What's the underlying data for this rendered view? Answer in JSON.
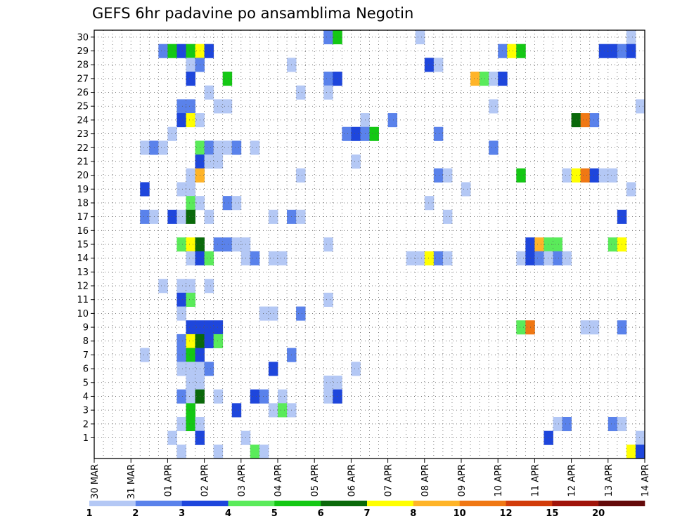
{
  "chart_data": {
    "type": "heatmap",
    "title": "GEFS 6hr padavine po ansamblima Negotin",
    "y_labels": [
      "1",
      "2",
      "3",
      "4",
      "5",
      "6",
      "7",
      "8",
      "9",
      "10",
      "11",
      "12",
      "13",
      "14",
      "15",
      "16",
      "17",
      "18",
      "19",
      "20",
      "21",
      "22",
      "23",
      "24",
      "25",
      "26",
      "27",
      "28",
      "29",
      "30"
    ],
    "x_labels": [
      "30 MAR",
      "31 MAR",
      "01 APR",
      "02 APR",
      "03 APR",
      "04 APR",
      "05 APR",
      "06 APR",
      "07 APR",
      "08 APR",
      "09 APR",
      "10 APR",
      "11 APR",
      "12 APR",
      "13 APR",
      "14 APR"
    ],
    "steps_per_day": 4,
    "x_steps": 60,
    "grid": "dotted",
    "colorbar": {
      "levels": [
        1,
        2,
        3,
        4,
        5,
        6,
        7,
        8,
        10,
        12,
        15,
        20
      ],
      "colors": [
        "#b4c8f5",
        "#5a82eb",
        "#1e46dc",
        "#5aeb5a",
        "#14c814",
        "#0a690a",
        "#ffff00",
        "#ffb428",
        "#f07814",
        "#d23c0a",
        "#a0140a",
        "#640a0a"
      ]
    },
    "cells": [
      {
        "m": 30,
        "s": [
          [
            25,
            25,
            1
          ],
          [
            26,
            26,
            4
          ],
          [
            35,
            35,
            0
          ],
          [
            58,
            58,
            0
          ]
        ]
      },
      {
        "m": 29,
        "s": [
          [
            7,
            7,
            1
          ],
          [
            8,
            8,
            4
          ],
          [
            9,
            9,
            2
          ],
          [
            10,
            10,
            4
          ],
          [
            11,
            11,
            6
          ],
          [
            12,
            12,
            2
          ],
          [
            44,
            44,
            1
          ],
          [
            45,
            45,
            6
          ],
          [
            46,
            46,
            4
          ],
          [
            55,
            56,
            2
          ],
          [
            57,
            57,
            1
          ],
          [
            58,
            58,
            2
          ]
        ]
      },
      {
        "m": 28,
        "s": [
          [
            10,
            10,
            0
          ],
          [
            11,
            11,
            1
          ],
          [
            21,
            21,
            0
          ],
          [
            36,
            36,
            2
          ],
          [
            37,
            37,
            0
          ]
        ]
      },
      {
        "m": 27,
        "s": [
          [
            10,
            10,
            2
          ],
          [
            14,
            14,
            4
          ],
          [
            25,
            25,
            1
          ],
          [
            26,
            26,
            2
          ],
          [
            41,
            41,
            7
          ],
          [
            42,
            42,
            3
          ],
          [
            43,
            43,
            0
          ],
          [
            44,
            44,
            2
          ]
        ]
      },
      {
        "m": 26,
        "s": [
          [
            12,
            12,
            0
          ],
          [
            22,
            22,
            0
          ],
          [
            25,
            25,
            0
          ]
        ]
      },
      {
        "m": 25,
        "s": [
          [
            9,
            10,
            1
          ],
          [
            13,
            14,
            0
          ],
          [
            43,
            43,
            0
          ],
          [
            59,
            59,
            0
          ]
        ]
      },
      {
        "m": 24,
        "s": [
          [
            9,
            9,
            2
          ],
          [
            10,
            10,
            6
          ],
          [
            11,
            11,
            0
          ],
          [
            29,
            29,
            0
          ],
          [
            32,
            32,
            1
          ],
          [
            52,
            52,
            5
          ],
          [
            53,
            53,
            8
          ],
          [
            54,
            54,
            1
          ]
        ]
      },
      {
        "m": 23,
        "s": [
          [
            8,
            8,
            0
          ],
          [
            27,
            27,
            1
          ],
          [
            28,
            28,
            2
          ],
          [
            29,
            29,
            1
          ],
          [
            30,
            30,
            4
          ],
          [
            37,
            37,
            1
          ]
        ]
      },
      {
        "m": 22,
        "s": [
          [
            5,
            5,
            0
          ],
          [
            6,
            6,
            1
          ],
          [
            7,
            7,
            0
          ],
          [
            11,
            11,
            3
          ],
          [
            12,
            12,
            1
          ],
          [
            13,
            14,
            0
          ],
          [
            15,
            15,
            1
          ],
          [
            17,
            17,
            0
          ],
          [
            43,
            43,
            1
          ]
        ]
      },
      {
        "m": 21,
        "s": [
          [
            11,
            11,
            2
          ],
          [
            12,
            13,
            0
          ],
          [
            28,
            28,
            0
          ]
        ]
      },
      {
        "m": 20,
        "s": [
          [
            10,
            10,
            0
          ],
          [
            11,
            11,
            7
          ],
          [
            22,
            22,
            0
          ],
          [
            37,
            37,
            1
          ],
          [
            38,
            38,
            0
          ],
          [
            46,
            46,
            4
          ],
          [
            51,
            51,
            0
          ],
          [
            52,
            52,
            6
          ],
          [
            53,
            53,
            8
          ],
          [
            54,
            54,
            2
          ],
          [
            55,
            56,
            0
          ]
        ]
      },
      {
        "m": 19,
        "s": [
          [
            5,
            5,
            2
          ],
          [
            9,
            10,
            0
          ],
          [
            40,
            40,
            0
          ],
          [
            58,
            58,
            0
          ]
        ]
      },
      {
        "m": 18,
        "s": [
          [
            10,
            10,
            3
          ],
          [
            11,
            11,
            0
          ],
          [
            14,
            14,
            1
          ],
          [
            15,
            15,
            0
          ],
          [
            36,
            36,
            0
          ]
        ]
      },
      {
        "m": 17,
        "s": [
          [
            5,
            5,
            1
          ],
          [
            6,
            6,
            0
          ],
          [
            8,
            8,
            2
          ],
          [
            9,
            9,
            0
          ],
          [
            10,
            10,
            5
          ],
          [
            12,
            12,
            0
          ],
          [
            19,
            19,
            0
          ],
          [
            21,
            21,
            1
          ],
          [
            22,
            22,
            0
          ],
          [
            38,
            38,
            0
          ],
          [
            57,
            57,
            2
          ]
        ]
      },
      {
        "m": 15,
        "s": [
          [
            9,
            9,
            3
          ],
          [
            10,
            10,
            6
          ],
          [
            11,
            11,
            5
          ],
          [
            13,
            14,
            1
          ],
          [
            15,
            16,
            0
          ],
          [
            25,
            25,
            0
          ],
          [
            47,
            47,
            2
          ],
          [
            48,
            48,
            7
          ],
          [
            49,
            50,
            3
          ],
          [
            56,
            56,
            3
          ],
          [
            57,
            57,
            6
          ]
        ]
      },
      {
        "m": 14,
        "s": [
          [
            10,
            10,
            0
          ],
          [
            11,
            11,
            2
          ],
          [
            12,
            12,
            3
          ],
          [
            16,
            16,
            0
          ],
          [
            17,
            17,
            1
          ],
          [
            19,
            20,
            0
          ],
          [
            34,
            35,
            0
          ],
          [
            36,
            36,
            6
          ],
          [
            37,
            37,
            1
          ],
          [
            38,
            38,
            0
          ],
          [
            46,
            46,
            0
          ],
          [
            47,
            47,
            2
          ],
          [
            48,
            48,
            1
          ],
          [
            49,
            49,
            0
          ],
          [
            50,
            50,
            1
          ],
          [
            51,
            51,
            0
          ]
        ]
      },
      {
        "m": 12,
        "s": [
          [
            7,
            7,
            0
          ],
          [
            9,
            10,
            0
          ],
          [
            12,
            12,
            0
          ]
        ]
      },
      {
        "m": 11,
        "s": [
          [
            9,
            9,
            2
          ],
          [
            10,
            10,
            3
          ],
          [
            25,
            25,
            0
          ]
        ]
      },
      {
        "m": 10,
        "s": [
          [
            9,
            9,
            0
          ],
          [
            18,
            19,
            0
          ],
          [
            22,
            22,
            1
          ]
        ]
      },
      {
        "m": 9,
        "s": [
          [
            10,
            10,
            2
          ],
          [
            11,
            13,
            2
          ],
          [
            46,
            46,
            3
          ],
          [
            47,
            47,
            8
          ],
          [
            53,
            54,
            0
          ],
          [
            57,
            57,
            1
          ]
        ]
      },
      {
        "m": 8,
        "s": [
          [
            9,
            9,
            1
          ],
          [
            10,
            10,
            6
          ],
          [
            11,
            11,
            5
          ],
          [
            12,
            12,
            2
          ],
          [
            13,
            13,
            3
          ]
        ]
      },
      {
        "m": 7,
        "s": [
          [
            5,
            5,
            0
          ],
          [
            9,
            9,
            1
          ],
          [
            10,
            10,
            4
          ],
          [
            11,
            11,
            2
          ],
          [
            21,
            21,
            1
          ]
        ]
      },
      {
        "m": 6,
        "s": [
          [
            9,
            11,
            0
          ],
          [
            12,
            12,
            1
          ],
          [
            19,
            19,
            2
          ],
          [
            28,
            28,
            0
          ]
        ]
      },
      {
        "m": 5,
        "s": [
          [
            10,
            11,
            0
          ],
          [
            25,
            26,
            0
          ]
        ]
      },
      {
        "m": 4,
        "s": [
          [
            9,
            9,
            1
          ],
          [
            10,
            10,
            0
          ],
          [
            11,
            11,
            5
          ],
          [
            13,
            13,
            0
          ],
          [
            17,
            17,
            2
          ],
          [
            18,
            18,
            1
          ],
          [
            20,
            20,
            0
          ],
          [
            25,
            25,
            0
          ],
          [
            26,
            26,
            2
          ]
        ]
      },
      {
        "m": 3,
        "s": [
          [
            10,
            10,
            4
          ],
          [
            15,
            15,
            2
          ],
          [
            19,
            19,
            0
          ],
          [
            20,
            20,
            3
          ],
          [
            21,
            21,
            0
          ]
        ]
      },
      {
        "m": 2,
        "s": [
          [
            9,
            9,
            0
          ],
          [
            10,
            10,
            4
          ],
          [
            11,
            11,
            0
          ],
          [
            50,
            50,
            0
          ],
          [
            51,
            51,
            1
          ],
          [
            56,
            56,
            1
          ],
          [
            57,
            57,
            0
          ]
        ]
      },
      {
        "m": 1,
        "s": [
          [
            8,
            8,
            0
          ],
          [
            11,
            11,
            2
          ],
          [
            16,
            16,
            0
          ],
          [
            49,
            49,
            2
          ],
          [
            59,
            59,
            0
          ]
        ]
      },
      {
        "m": 0,
        "s": [
          [
            9,
            9,
            0
          ],
          [
            13,
            13,
            0
          ],
          [
            17,
            17,
            3
          ],
          [
            18,
            18,
            0
          ],
          [
            58,
            58,
            6
          ],
          [
            59,
            59,
            2
          ]
        ]
      }
    ]
  }
}
